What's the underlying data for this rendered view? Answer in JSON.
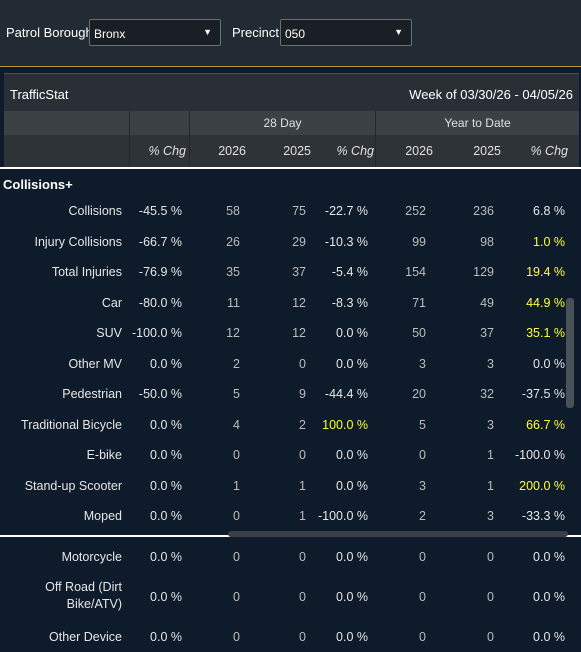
{
  "filters": {
    "borough_label": "Patrol Borough:",
    "borough_value": "Bronx",
    "precinct_label": "Precinct:",
    "precinct_value": "050"
  },
  "report": {
    "title": "TrafficStat",
    "week": "Week of 03/30/26 - 04/05/26"
  },
  "groups": {
    "day28": "28 Day",
    "ytd": "Year to Date"
  },
  "columns": [
    "% Chg",
    "2026",
    "2025",
    "% Chg",
    "2026",
    "2025",
    "% Chg"
  ],
  "section_title": "Collisions+",
  "rows": [
    {
      "label": "Collisions",
      "pchg": "-45.5 %",
      "d26": "58",
      "d25": "75",
      "dchg": "-22.7 %",
      "y26": "252",
      "y25": "236",
      "ychg": "6.8 %",
      "hl": [
        false,
        false
      ]
    },
    {
      "label": "Injury Collisions",
      "pchg": "-66.7 %",
      "d26": "26",
      "d25": "29",
      "dchg": "-10.3 %",
      "y26": "99",
      "y25": "98",
      "ychg": "1.0 %",
      "hl": [
        false,
        true
      ]
    },
    {
      "label": "Total Injuries",
      "pchg": "-76.9 %",
      "d26": "35",
      "d25": "37",
      "dchg": "-5.4 %",
      "y26": "154",
      "y25": "129",
      "ychg": "19.4 %",
      "hl": [
        false,
        true
      ]
    },
    {
      "label": "Car",
      "pchg": "-80.0 %",
      "d26": "11",
      "d25": "12",
      "dchg": "-8.3 %",
      "y26": "71",
      "y25": "49",
      "ychg": "44.9 %",
      "hl": [
        false,
        true
      ]
    },
    {
      "label": "SUV",
      "pchg": "-100.0 %",
      "d26": "12",
      "d25": "12",
      "dchg": "0.0 %",
      "y26": "50",
      "y25": "37",
      "ychg": "35.1 %",
      "hl": [
        false,
        true
      ]
    },
    {
      "label": "Other MV",
      "pchg": "0.0 %",
      "d26": "2",
      "d25": "0",
      "dchg": "0.0 %",
      "y26": "3",
      "y25": "3",
      "ychg": "0.0 %",
      "hl": [
        false,
        false
      ]
    },
    {
      "label": "Pedestrian",
      "pchg": "-50.0 %",
      "d26": "5",
      "d25": "9",
      "dchg": "-44.4 %",
      "y26": "20",
      "y25": "32",
      "ychg": "-37.5 %",
      "hl": [
        false,
        false
      ]
    },
    {
      "label": "Traditional Bicycle",
      "pchg": "0.0 %",
      "d26": "4",
      "d25": "2",
      "dchg": "100.0 %",
      "y26": "5",
      "y25": "3",
      "ychg": "66.7 %",
      "hl": [
        true,
        true
      ]
    },
    {
      "label": "E-bike",
      "pchg": "0.0 %",
      "d26": "0",
      "d25": "0",
      "dchg": "0.0 %",
      "y26": "0",
      "y25": "1",
      "ychg": "-100.0 %",
      "hl": [
        false,
        false
      ]
    },
    {
      "label": "Stand-up Scooter",
      "pchg": "0.0 %",
      "d26": "1",
      "d25": "1",
      "dchg": "0.0 %",
      "y26": "3",
      "y25": "1",
      "ychg": "200.0 %",
      "hl": [
        false,
        true
      ]
    },
    {
      "label": "Moped",
      "pchg": "0.0 %",
      "d26": "0",
      "d25": "1",
      "dchg": "-100.0 %",
      "y26": "2",
      "y25": "3",
      "ychg": "-33.3 %",
      "hl": [
        false,
        false
      ]
    },
    {
      "label": "Motorcycle",
      "pchg": "0.0 %",
      "d26": "0",
      "d25": "0",
      "dchg": "0.0 %",
      "y26": "0",
      "y25": "0",
      "ychg": "0.0 %",
      "hl": [
        false,
        false
      ]
    },
    {
      "label_lines": [
        "Off Road (Dirt",
        "Bike/ATV)"
      ],
      "pchg": "0.0 %",
      "d26": "0",
      "d25": "0",
      "dchg": "0.0 %",
      "y26": "0",
      "y25": "0",
      "ychg": "0.0 %",
      "hl": [
        false,
        false
      ]
    },
    {
      "label": "Other Device",
      "pchg": "0.0 %",
      "d26": "0",
      "d25": "0",
      "dchg": "0.0 %",
      "y26": "0",
      "y25": "0",
      "ychg": "0.0 %",
      "hl": [
        false,
        false
      ]
    }
  ]
}
